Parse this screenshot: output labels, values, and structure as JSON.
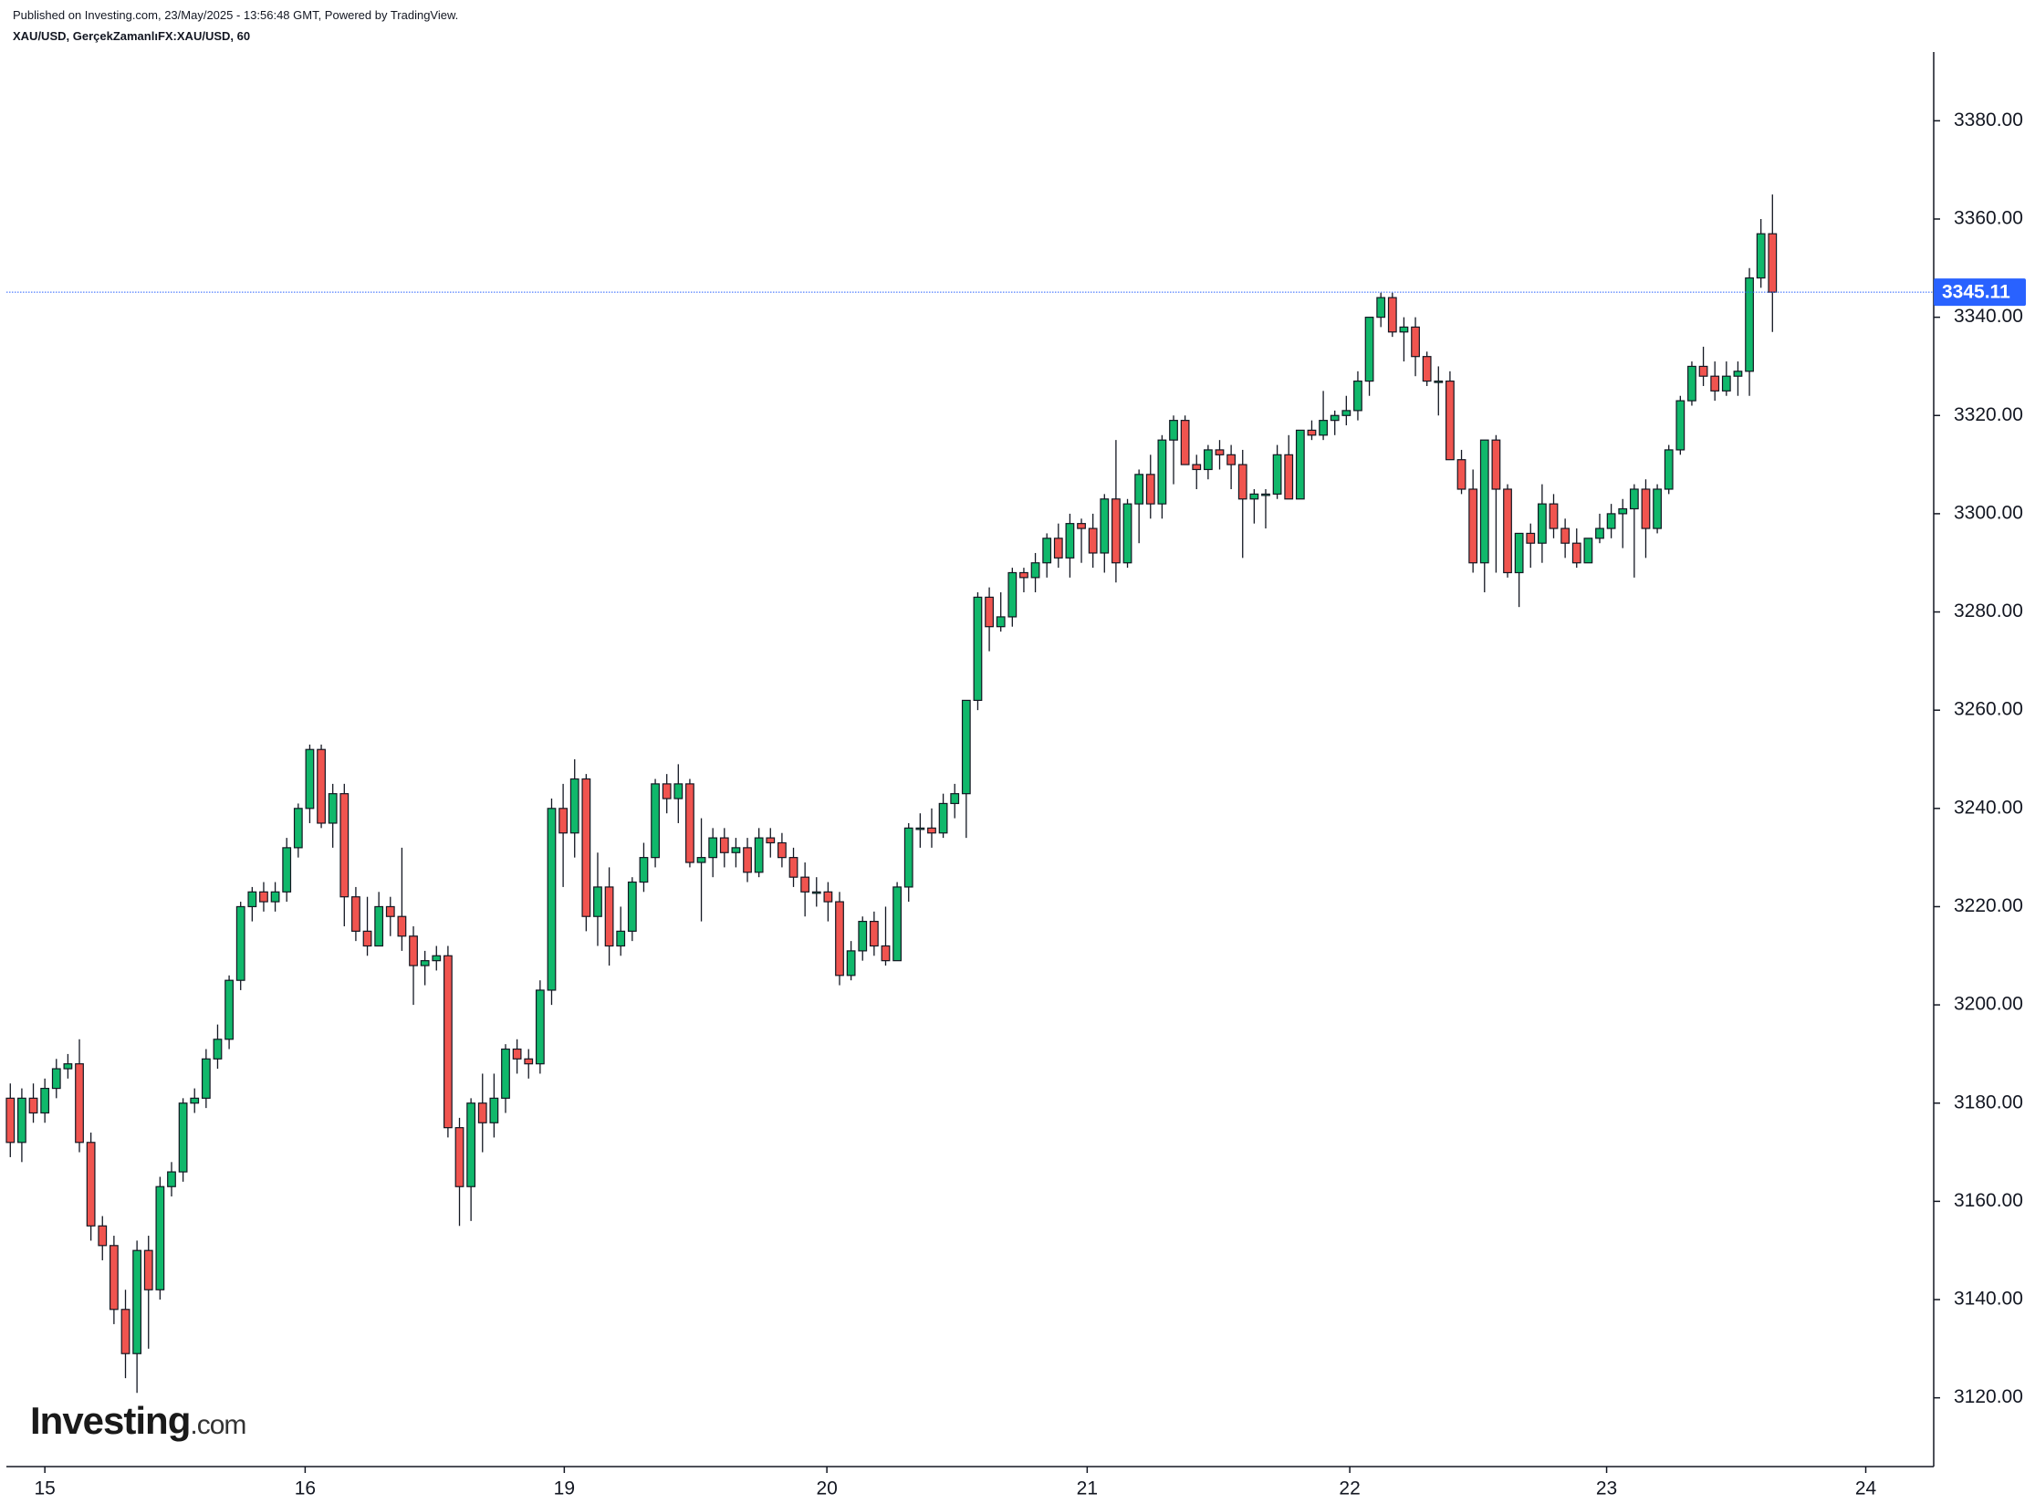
{
  "chart_data": {
    "type": "candlestick",
    "published": "Published on Investing.com, 23/May/2025 - 13:56:48 GMT, Powered by TradingView.",
    "symbol": "XAU/USD, GerçekZamanlıFX:XAU/USD, 60",
    "logo": {
      "brand": "Investing",
      "suffix": ".com"
    },
    "up_color": "#10b86b",
    "down_color": "#f0544f",
    "price_line_color": "#2962ff",
    "ylim": [
      3106,
      3394
    ],
    "yticks": [
      {
        "value": 3120,
        "label": "3120.00"
      },
      {
        "value": 3140,
        "label": "3140.00"
      },
      {
        "value": 3160,
        "label": "3160.00"
      },
      {
        "value": 3180,
        "label": "3180.00"
      },
      {
        "value": 3200,
        "label": "3200.00"
      },
      {
        "value": 3220,
        "label": "3220.00"
      },
      {
        "value": 3240,
        "label": "3240.00"
      },
      {
        "value": 3260,
        "label": "3260.00"
      },
      {
        "value": 3280,
        "label": "3280.00"
      },
      {
        "value": 3300,
        "label": "3300.00"
      },
      {
        "value": 3320,
        "label": "3320.00"
      },
      {
        "value": 3340,
        "label": "3340.00"
      },
      {
        "value": 3360,
        "label": "3360.00"
      },
      {
        "value": 3380,
        "label": "3380.00"
      }
    ],
    "xlim": [
      -0.34,
      167
    ],
    "xticks": [
      {
        "value": 3,
        "label": "15"
      },
      {
        "value": 25.6,
        "label": "16"
      },
      {
        "value": 48.1,
        "label": "19"
      },
      {
        "value": 70.9,
        "label": "20"
      },
      {
        "value": 93.5,
        "label": "21"
      },
      {
        "value": 116.3,
        "label": "22"
      },
      {
        "value": 138.6,
        "label": "23"
      },
      {
        "value": 161.1,
        "label": "24"
      }
    ],
    "ohlc": [
      [
        3181,
        3184,
        3169,
        3172
      ],
      [
        3172,
        3183,
        3168,
        3181
      ],
      [
        3181,
        3184,
        3176,
        3178
      ],
      [
        3178,
        3185,
        3176,
        3183
      ],
      [
        3183,
        3189,
        3181,
        3187
      ],
      [
        3187,
        3190,
        3185,
        3188
      ],
      [
        3188,
        3193,
        3170,
        3172
      ],
      [
        3172,
        3174,
        3152,
        3155
      ],
      [
        3155,
        3157,
        3148,
        3151
      ],
      [
        3151,
        3153,
        3135,
        3138
      ],
      [
        3138,
        3142,
        3124,
        3129
      ],
      [
        3129,
        3152,
        3121,
        3150
      ],
      [
        3150,
        3153,
        3130,
        3142
      ],
      [
        3142,
        3165,
        3140,
        3163
      ],
      [
        3163,
        3168,
        3161,
        3166
      ],
      [
        3166,
        3181,
        3164,
        3180
      ],
      [
        3180,
        3183,
        3178,
        3181
      ],
      [
        3181,
        3191,
        3179,
        3189
      ],
      [
        3189,
        3196,
        3187,
        3193
      ],
      [
        3193,
        3206,
        3191,
        3205
      ],
      [
        3205,
        3221,
        3203,
        3220
      ],
      [
        3220,
        3224,
        3217,
        3223
      ],
      [
        3223,
        3225,
        3219,
        3221
      ],
      [
        3221,
        3225,
        3219,
        3223
      ],
      [
        3223,
        3234,
        3221,
        3232
      ],
      [
        3232,
        3241,
        3230,
        3240
      ],
      [
        3240,
        3253,
        3237,
        3252
      ],
      [
        3252,
        3253,
        3236,
        3237
      ],
      [
        3237,
        3245,
        3232,
        3243
      ],
      [
        3243,
        3245,
        3216,
        3222
      ],
      [
        3222,
        3224,
        3213,
        3215
      ],
      [
        3215,
        3222,
        3210,
        3212
      ],
      [
        3212,
        3223,
        3212,
        3220
      ],
      [
        3220,
        3222,
        3214,
        3218
      ],
      [
        3218,
        3232,
        3211,
        3214
      ],
      [
        3214,
        3216,
        3200,
        3208
      ],
      [
        3208,
        3211,
        3204,
        3209
      ],
      [
        3209,
        3212,
        3207,
        3210
      ],
      [
        3210,
        3212,
        3173,
        3175
      ],
      [
        3175,
        3177,
        3155,
        3163
      ],
      [
        3163,
        3181,
        3156,
        3180
      ],
      [
        3180,
        3186,
        3170,
        3176
      ],
      [
        3176,
        3186,
        3173,
        3181
      ],
      [
        3181,
        3192,
        3178,
        3191
      ],
      [
        3191,
        3193,
        3186,
        3189
      ],
      [
        3189,
        3191,
        3185,
        3188
      ],
      [
        3188,
        3205,
        3186,
        3203
      ],
      [
        3203,
        3242,
        3200,
        3240
      ],
      [
        3240,
        3245,
        3224,
        3235
      ],
      [
        3235,
        3250,
        3230,
        3246
      ],
      [
        3246,
        3247,
        3215,
        3218
      ],
      [
        3218,
        3231,
        3212,
        3224
      ],
      [
        3224,
        3228,
        3208,
        3212
      ],
      [
        3212,
        3220,
        3210,
        3215
      ],
      [
        3215,
        3226,
        3213,
        3225
      ],
      [
        3225,
        3233,
        3223,
        3230
      ],
      [
        3230,
        3246,
        3228,
        3245
      ],
      [
        3245,
        3247,
        3239,
        3242
      ],
      [
        3242,
        3249,
        3237,
        3245
      ],
      [
        3245,
        3246,
        3228,
        3229
      ],
      [
        3229,
        3238,
        3217,
        3230
      ],
      [
        3230,
        3236,
        3226,
        3234
      ],
      [
        3234,
        3236,
        3228,
        3231
      ],
      [
        3231,
        3234,
        3228,
        3232
      ],
      [
        3232,
        3234,
        3225,
        3227
      ],
      [
        3227,
        3236,
        3226,
        3234
      ],
      [
        3234,
        3236,
        3230,
        3233
      ],
      [
        3233,
        3235,
        3228,
        3230
      ],
      [
        3230,
        3232,
        3224,
        3226
      ],
      [
        3226,
        3229,
        3218,
        3223
      ],
      [
        3223,
        3226,
        3220,
        3223
      ],
      [
        3223,
        3225,
        3217,
        3221
      ],
      [
        3221,
        3223,
        3204,
        3206
      ],
      [
        3206,
        3213,
        3205,
        3211
      ],
      [
        3211,
        3218,
        3209,
        3217
      ],
      [
        3217,
        3219,
        3210,
        3212
      ],
      [
        3212,
        3220,
        3208,
        3209
      ],
      [
        3209,
        3225,
        3209,
        3224
      ],
      [
        3224,
        3237,
        3221,
        3236
      ],
      [
        3236,
        3239,
        3232,
        3236
      ],
      [
        3236,
        3240,
        3232,
        3235
      ],
      [
        3235,
        3243,
        3234,
        3241
      ],
      [
        3241,
        3245,
        3238,
        3243
      ],
      [
        3243,
        3262,
        3234,
        3262
      ],
      [
        3262,
        3284,
        3260,
        3283
      ],
      [
        3283,
        3285,
        3272,
        3277
      ],
      [
        3277,
        3284,
        3276,
        3279
      ],
      [
        3279,
        3289,
        3277,
        3288
      ],
      [
        3288,
        3289,
        3284,
        3287
      ],
      [
        3287,
        3292,
        3284,
        3290
      ],
      [
        3290,
        3296,
        3287,
        3295
      ],
      [
        3295,
        3298,
        3289,
        3291
      ],
      [
        3291,
        3300,
        3287,
        3298
      ],
      [
        3298,
        3299,
        3290,
        3297
      ],
      [
        3297,
        3300,
        3289,
        3292
      ],
      [
        3292,
        3304,
        3288,
        3303
      ],
      [
        3303,
        3315,
        3286,
        3290
      ],
      [
        3290,
        3303,
        3289,
        3302
      ],
      [
        3302,
        3309,
        3294,
        3308
      ],
      [
        3308,
        3312,
        3299,
        3302
      ],
      [
        3302,
        3316,
        3299,
        3315
      ],
      [
        3315,
        3320,
        3306,
        3319
      ],
      [
        3319,
        3320,
        3310,
        3310
      ],
      [
        3310,
        3312,
        3305,
        3309
      ],
      [
        3309,
        3314,
        3307,
        3313
      ],
      [
        3313,
        3315,
        3309,
        3312
      ],
      [
        3312,
        3314,
        3305,
        3310
      ],
      [
        3310,
        3313,
        3291,
        3303
      ],
      [
        3303,
        3305,
        3298,
        3304
      ],
      [
        3304,
        3305,
        3297,
        3304
      ],
      [
        3304,
        3314,
        3303,
        3312
      ],
      [
        3312,
        3316,
        3303,
        3303
      ],
      [
        3303,
        3317,
        3303,
        3317
      ],
      [
        3317,
        3319,
        3315,
        3316
      ],
      [
        3316,
        3325,
        3315,
        3319
      ],
      [
        3319,
        3321,
        3316,
        3320
      ],
      [
        3320,
        3324,
        3318,
        3321
      ],
      [
        3321,
        3329,
        3319,
        3327
      ],
      [
        3327,
        3340,
        3324,
        3340
      ],
      [
        3340,
        3345,
        3338,
        3344
      ],
      [
        3344,
        3345,
        3336,
        3337
      ],
      [
        3337,
        3340,
        3331,
        3338
      ],
      [
        3338,
        3340,
        3328,
        3332
      ],
      [
        3332,
        3333,
        3326,
        3327
      ],
      [
        3327,
        3330,
        3320,
        3327
      ],
      [
        3327,
        3329,
        3311,
        3311
      ],
      [
        3311,
        3313,
        3304,
        3305
      ],
      [
        3305,
        3309,
        3288,
        3290
      ],
      [
        3290,
        3315,
        3284,
        3315
      ],
      [
        3315,
        3316,
        3288,
        3305
      ],
      [
        3305,
        3306,
        3287,
        3288
      ],
      [
        3288,
        3296,
        3281,
        3296
      ],
      [
        3296,
        3298,
        3289,
        3294
      ],
      [
        3294,
        3306,
        3290,
        3302
      ],
      [
        3302,
        3304,
        3295,
        3297
      ],
      [
        3297,
        3299,
        3291,
        3294
      ],
      [
        3294,
        3297,
        3289,
        3290
      ],
      [
        3290,
        3295,
        3290,
        3295
      ],
      [
        3295,
        3300,
        3294,
        3297
      ],
      [
        3297,
        3302,
        3295,
        3300
      ],
      [
        3300,
        3303,
        3293,
        3301
      ],
      [
        3301,
        3306,
        3287,
        3305
      ],
      [
        3305,
        3307,
        3291,
        3297
      ],
      [
        3297,
        3306,
        3296,
        3305
      ],
      [
        3305,
        3314,
        3304,
        3313
      ],
      [
        3313,
        3324,
        3312,
        3323
      ],
      [
        3323,
        3331,
        3322,
        3330
      ],
      [
        3330,
        3334,
        3326,
        3328
      ],
      [
        3328,
        3331,
        3323,
        3325
      ],
      [
        3325,
        3331,
        3324,
        3328
      ],
      [
        3328,
        3331,
        3324,
        3329
      ],
      [
        3329,
        3350,
        3324,
        3348
      ],
      [
        3348,
        3360,
        3346,
        3357
      ],
      [
        3357,
        3365,
        3337,
        3345.11
      ]
    ]
  }
}
